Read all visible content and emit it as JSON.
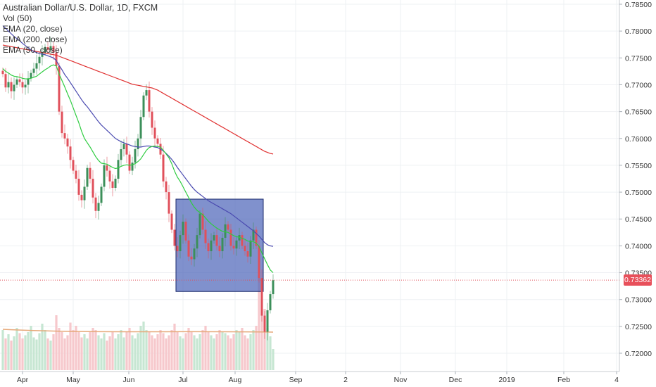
{
  "legend": {
    "title": "Australian Dollar/U.S. Dollar, 1D, FXCM",
    "vol": "Vol (50)",
    "ema20": "EMA (20, close)",
    "ema200": "EMA (200, close)",
    "ema50": "EMA (50, close)"
  },
  "last_price_label": "0.73362",
  "colors": {
    "up": "#3c8f5a",
    "down": "#e0505b",
    "ema20": "#2ecc40",
    "ema50": "#4a4ab0",
    "ema200": "#e03030",
    "box_fill": "#4a63b8",
    "grid": "#eef0f3"
  },
  "chart_data": {
    "type": "candlestick",
    "symbol": "AUDUSD",
    "interval": "1D",
    "last_price": 0.73362,
    "y_axis": {
      "ticks": [
        "0.78500",
        "0.78000",
        "0.77500",
        "0.77000",
        "0.76500",
        "0.76000",
        "0.75500",
        "0.75000",
        "0.74500",
        "0.74000",
        "0.73500",
        "0.73000",
        "0.72500",
        "0.72000"
      ]
    },
    "x_axis": {
      "labels": [
        "Apr",
        "May",
        "Jun",
        "Jul",
        "Aug",
        "Sep",
        "2",
        "Nov",
        "Dec",
        "2019",
        "Feb",
        "4"
      ]
    },
    "grid": true,
    "close_series": [
      0.772,
      0.7695,
      0.7705,
      0.7688,
      0.77,
      0.771,
      0.7705,
      0.7695,
      0.77,
      0.7712,
      0.7722,
      0.773,
      0.774,
      0.7752,
      0.776,
      0.777,
      0.7765,
      0.7772,
      0.776,
      0.7735,
      0.765,
      0.761,
      0.76,
      0.7585,
      0.756,
      0.754,
      0.7525,
      0.7495,
      0.7485,
      0.751,
      0.7545,
      0.7525,
      0.749,
      0.7465,
      0.748,
      0.751,
      0.755,
      0.754,
      0.752,
      0.7508,
      0.7525,
      0.756,
      0.758,
      0.759,
      0.757,
      0.754,
      0.7555,
      0.758,
      0.76,
      0.764,
      0.768,
      0.769,
      0.765,
      0.762,
      0.76,
      0.759,
      0.757,
      0.752,
      0.75,
      0.746,
      0.743,
      0.74,
      0.739,
      0.742,
      0.7445,
      0.741,
      0.738,
      0.7375,
      0.7395,
      0.742,
      0.746,
      0.743,
      0.7405,
      0.739,
      0.741,
      0.742,
      0.74,
      0.739,
      0.7415,
      0.744,
      0.743,
      0.74,
      0.7395,
      0.741,
      0.742,
      0.74,
      0.739,
      0.738,
      0.741,
      0.743,
      0.74,
      0.734,
      0.727,
      0.724,
      0.728,
      0.731,
      0.7336
    ],
    "volume": [
      0.38,
      0.3,
      0.34,
      0.28,
      0.32,
      0.4,
      0.35,
      0.3,
      0.33,
      0.36,
      0.42,
      0.31,
      0.29,
      0.35,
      0.44,
      0.38,
      0.3,
      0.28,
      0.34,
      0.52,
      0.4,
      0.36,
      0.3,
      0.33,
      0.45,
      0.38,
      0.42,
      0.36,
      0.31,
      0.34,
      0.3,
      0.36,
      0.4,
      0.38,
      0.33,
      0.3,
      0.35,
      0.28,
      0.32,
      0.36,
      0.3,
      0.34,
      0.38,
      0.31,
      0.36,
      0.4,
      0.33,
      0.3,
      0.35,
      0.42,
      0.46,
      0.38,
      0.36,
      0.33,
      0.3,
      0.34,
      0.38,
      0.35,
      0.3,
      0.33,
      0.38,
      0.44,
      0.36,
      0.32,
      0.3,
      0.35,
      0.4,
      0.36,
      0.33,
      0.3,
      0.34,
      0.38,
      0.42,
      0.36,
      0.33,
      0.3,
      0.34,
      0.38,
      0.36,
      0.35,
      0.33,
      0.3,
      0.34,
      0.38,
      0.36,
      0.4,
      0.33,
      0.3,
      0.34,
      0.38,
      0.42,
      0.9,
      0.75,
      0.58,
      0.4,
      0.32,
      0.2
    ],
    "ema20_series": [
      0.773,
      0.7725,
      0.7722,
      0.7718,
      0.7716,
      0.7715,
      0.7714,
      0.7712,
      0.7711,
      0.7711,
      0.7712,
      0.7714,
      0.7716,
      0.772,
      0.7724,
      0.7728,
      0.7731,
      0.7735,
      0.7737,
      0.7735,
      0.772,
      0.7708,
      0.7696,
      0.7683,
      0.7671,
      0.7657,
      0.7643,
      0.7629,
      0.7613,
      0.76,
      0.7592,
      0.7584,
      0.7575,
      0.7566,
      0.7559,
      0.7554,
      0.7553,
      0.7552,
      0.7549,
      0.7546,
      0.7544,
      0.7545,
      0.7548,
      0.755,
      0.7551,
      0.755,
      0.7551,
      0.7553,
      0.7557,
      0.7562,
      0.757,
      0.7578,
      0.7583,
      0.7585,
      0.7586,
      0.7585,
      0.7584,
      0.7578,
      0.7571,
      0.7564,
      0.7553,
      0.7539,
      0.7528,
      0.752,
      0.751,
      0.75,
      0.749,
      0.748,
      0.7472,
      0.7466,
      0.7462,
      0.7458,
      0.7452,
      0.7446,
      0.7441,
      0.7437,
      0.7433,
      0.743,
      0.7427,
      0.7426,
      0.7425,
      0.7422,
      0.7419,
      0.7417,
      0.7416,
      0.7414,
      0.7412,
      0.7409,
      0.7408,
      0.7408,
      0.7405,
      0.7399,
      0.7387,
      0.7376,
      0.7365,
      0.7355,
      0.735
    ],
    "ema50_series": [
      0.781,
      0.7805,
      0.78,
      0.7795,
      0.779,
      0.7786,
      0.7782,
      0.7777,
      0.7773,
      0.7769,
      0.7765,
      0.7762,
      0.776,
      0.7758,
      0.7757,
      0.7756,
      0.7754,
      0.7752,
      0.775,
      0.7745,
      0.7736,
      0.7728,
      0.7719,
      0.7712,
      0.7704,
      0.7696,
      0.7688,
      0.768,
      0.7672,
      0.7665,
      0.7659,
      0.7652,
      0.7645,
      0.7638,
      0.7631,
      0.7625,
      0.762,
      0.7615,
      0.761,
      0.7605,
      0.76,
      0.7597,
      0.7594,
      0.7592,
      0.759,
      0.7588,
      0.7586,
      0.7585,
      0.7584,
      0.7584,
      0.7585,
      0.7586,
      0.7586,
      0.7585,
      0.7584,
      0.7583,
      0.758,
      0.7577,
      0.7572,
      0.7567,
      0.7561,
      0.7554,
      0.7546,
      0.7539,
      0.7532,
      0.7525,
      0.7518,
      0.7511,
      0.7505,
      0.75,
      0.7496,
      0.7492,
      0.7488,
      0.7484,
      0.7481,
      0.7478,
      0.7475,
      0.7472,
      0.7469,
      0.7466,
      0.7463,
      0.746,
      0.7456,
      0.7452,
      0.7448,
      0.7444,
      0.744,
      0.7436,
      0.7432,
      0.7428,
      0.7423,
      0.7418,
      0.7412,
      0.7406,
      0.7402,
      0.74,
      0.7399
    ],
    "ema200_series": [
      0.7774,
      0.7773,
      0.7772,
      0.7771,
      0.777,
      0.7769,
      0.7768,
      0.7767,
      0.7766,
      0.7765,
      0.7764,
      0.7763,
      0.7762,
      0.7761,
      0.776,
      0.7759,
      0.7758,
      0.7757,
      0.7756,
      0.7755,
      0.7753,
      0.7751,
      0.7749,
      0.7747,
      0.7745,
      0.7743,
      0.7741,
      0.7739,
      0.7737,
      0.7735,
      0.7733,
      0.7731,
      0.7729,
      0.7727,
      0.7725,
      0.7723,
      0.7721,
      0.7719,
      0.7717,
      0.7715,
      0.7713,
      0.7711,
      0.7709,
      0.7707,
      0.7705,
      0.7703,
      0.7701,
      0.77,
      0.7699,
      0.7698,
      0.7697,
      0.7696,
      0.7695,
      0.7694,
      0.7692,
      0.769,
      0.7687,
      0.7684,
      0.7681,
      0.7678,
      0.7675,
      0.7672,
      0.7669,
      0.7666,
      0.7663,
      0.766,
      0.7657,
      0.7654,
      0.7651,
      0.7648,
      0.7645,
      0.7642,
      0.7639,
      0.7636,
      0.7633,
      0.763,
      0.7627,
      0.7624,
      0.7621,
      0.7618,
      0.7615,
      0.7612,
      0.7609,
      0.7606,
      0.7603,
      0.76,
      0.7597,
      0.7594,
      0.7591,
      0.7588,
      0.7585,
      0.7582,
      0.7579,
      0.7576,
      0.7574,
      0.7572,
      0.7571
    ],
    "volume_ma_level": 0.36,
    "range_box": {
      "price_top": 0.7487,
      "price_bottom": 0.7315,
      "start_index": 62,
      "end_index": 92
    }
  }
}
